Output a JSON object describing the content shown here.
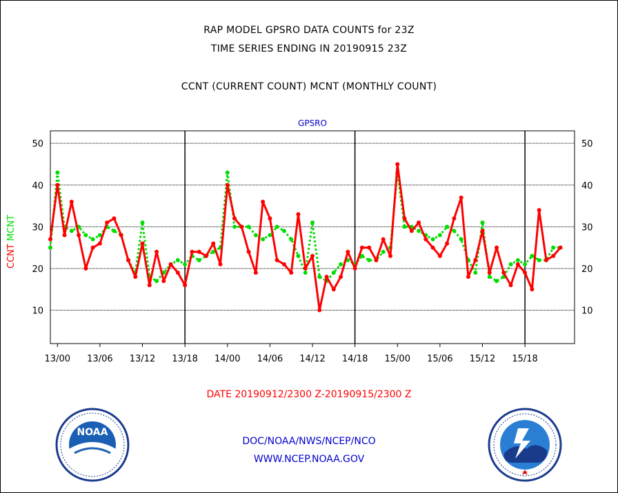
{
  "title_line1": "RAP MODEL GPSRO DATA COUNTS for 23Z",
  "title_line2": "TIME SERIES ENDING IN 20190915 23Z",
  "subtitle": "CCNT (CURRENT COUNT) MCNT (MONTHLY COUNT)",
  "date_range": "DATE 20190912/2300 Z-20190915/2300 Z",
  "footer_org": "DOC/NOAA/NWS/NCEP/NCO",
  "footer_url": "WWW.NCEP.NOAA.GOV",
  "colors": {
    "ccnt": "#ff0000",
    "mcnt": "#00dd00",
    "text_blue": "#0000cc",
    "grid": "#000000"
  },
  "logos": {
    "left": "noaa-logo",
    "right": "national-weather-service-logo"
  },
  "chart_data": {
    "type": "line",
    "title": "GPSRO",
    "ylabel_parts": [
      {
        "text": "CCNT",
        "color": "#ff0000"
      },
      {
        "text": "MCNT",
        "color": "#00dd00"
      }
    ],
    "xlabel": "",
    "ylim": [
      2,
      53
    ],
    "xlim": [
      -1,
      73
    ],
    "yticks": [
      10,
      20,
      30,
      40,
      50
    ],
    "xticks": [
      {
        "x": 0,
        "label": "13/00"
      },
      {
        "x": 6,
        "label": "13/06"
      },
      {
        "x": 12,
        "label": "13/12"
      },
      {
        "x": 18,
        "label": "13/18"
      },
      {
        "x": 24,
        "label": "14/00"
      },
      {
        "x": 30,
        "label": "14/06"
      },
      {
        "x": 36,
        "label": "14/12"
      },
      {
        "x": 42,
        "label": "14/18"
      },
      {
        "x": 48,
        "label": "15/00"
      },
      {
        "x": 54,
        "label": "15/06"
      },
      {
        "x": 60,
        "label": "15/12"
      },
      {
        "x": 66,
        "label": "15/18"
      }
    ],
    "vlines": [
      18,
      42,
      66
    ],
    "grid": true,
    "series": [
      {
        "name": "CCNT",
        "color": "#ff0000",
        "style": "solid",
        "values": [
          27,
          40,
          28,
          36,
          28,
          20,
          25,
          26,
          31,
          32,
          28,
          22,
          18,
          26,
          16,
          24,
          17,
          21,
          19,
          16,
          24,
          24,
          23,
          26,
          21,
          40,
          32,
          30,
          24,
          19,
          36,
          32,
          22,
          21,
          19,
          33,
          20,
          23,
          10,
          18,
          15,
          18,
          24,
          20,
          25,
          25,
          22,
          27,
          23,
          45,
          32,
          29,
          31,
          27,
          25,
          23,
          26,
          32,
          37,
          18,
          22,
          29,
          19,
          25,
          19,
          16,
          21,
          19,
          15,
          34,
          22,
          23,
          25
        ]
      },
      {
        "name": "MCNT",
        "color": "#00dd00",
        "style": "dotted",
        "values": [
          25,
          43,
          30,
          29,
          30,
          28,
          27,
          28,
          30,
          29,
          28,
          22,
          19,
          31,
          18,
          17,
          19,
          21,
          22,
          21,
          23,
          22,
          23,
          24,
          25,
          43,
          30,
          30,
          30,
          28,
          27,
          28,
          30,
          29,
          27,
          23,
          19,
          31,
          18,
          17,
          19,
          21,
          22,
          21,
          23,
          22,
          22,
          24,
          25,
          43,
          30,
          30,
          29,
          28,
          27,
          28,
          30,
          29,
          27,
          22,
          19,
          31,
          18,
          17,
          18,
          21,
          22,
          21,
          23,
          22,
          22,
          25,
          25
        ]
      }
    ]
  }
}
